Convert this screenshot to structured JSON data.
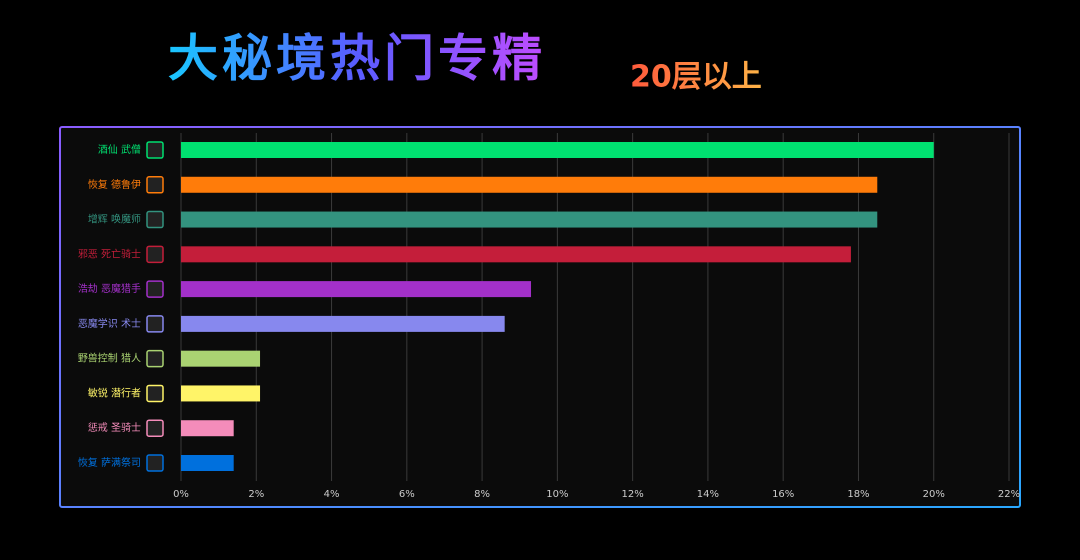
{
  "chart_data": {
    "type": "barh",
    "title": "大秘境热门专精",
    "subtitle": "20层以上",
    "categories": [
      "酒仙 武僧",
      "恢复 德鲁伊",
      "增辉 唤魔师",
      "邪恶 死亡骑士",
      "浩劫 恶魔猎手",
      "恶魔学识 术士",
      "野兽控制 猎人",
      "敏锐 潜行者",
      "惩戒 圣骑士",
      "恢复 萨满祭司"
    ],
    "values": [
      20,
      18.5,
      18.5,
      17.8,
      9.3,
      8.6,
      2.1,
      2.1,
      1.4,
      1.4
    ],
    "colors": [
      "#00e070",
      "#ff7c0a",
      "#33937f",
      "#c41e3a",
      "#a330c9",
      "#8788ee",
      "#aad372",
      "#fff468",
      "#f48cba",
      "#0070dd"
    ],
    "xlim": [
      0,
      22
    ],
    "xticks": [
      {
        "value": 0,
        "label": "0%"
      },
      {
        "value": 2,
        "label": "2%"
      },
      {
        "value": 4,
        "label": "4%"
      },
      {
        "value": 6,
        "label": "6%"
      },
      {
        "value": 8,
        "label": "8%"
      },
      {
        "value": 10,
        "label": "10%"
      },
      {
        "value": 12,
        "label": "12%"
      },
      {
        "value": 14,
        "label": "14%"
      },
      {
        "value": 16,
        "label": "16%"
      },
      {
        "value": 18,
        "label": "18%"
      },
      {
        "value": 20,
        "label": "20%"
      },
      {
        "value": 22,
        "label": "22%"
      }
    ],
    "grid": true
  }
}
